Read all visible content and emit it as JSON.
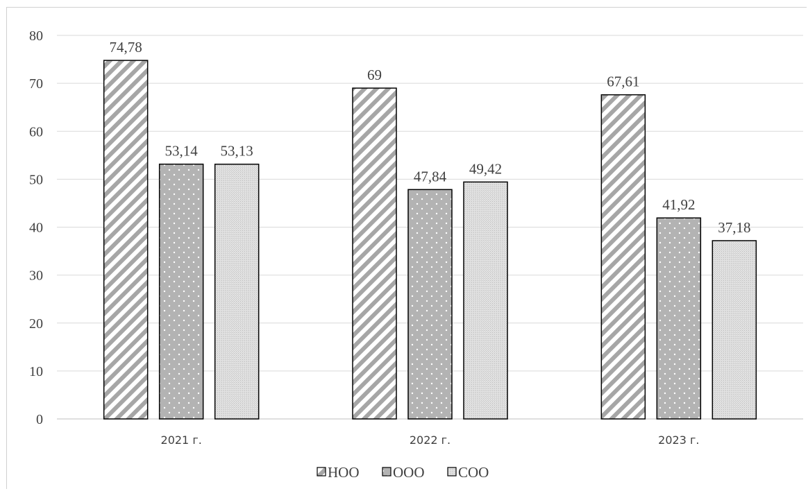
{
  "chart_data": {
    "type": "bar",
    "categories": [
      "2021 г.",
      "2022 г.",
      "2023 г."
    ],
    "series": [
      {
        "name": "НОО",
        "values": [
          74.78,
          69,
          67.61
        ],
        "labels": [
          "74,78",
          "69",
          "67,61"
        ],
        "pattern": "diagonal-stripes"
      },
      {
        "name": "ООО",
        "values": [
          53.14,
          47.84,
          41.92
        ],
        "labels": [
          "53,14",
          "47,84",
          "41,92"
        ],
        "pattern": "dots"
      },
      {
        "name": "СОО",
        "values": [
          53.13,
          49.42,
          37.18
        ],
        "labels": [
          "53,13",
          "49,42",
          "37,18"
        ],
        "pattern": "fine-grid"
      }
    ],
    "yticks": [
      "0",
      "10",
      "20",
      "30",
      "40",
      "50",
      "60",
      "70",
      "80"
    ],
    "ylim": [
      0,
      80
    ],
    "grid": true,
    "legend_position": "bottom",
    "colors": {
      "gridline": "#d9d9d9",
      "bar_outline": "#000000",
      "stripe": "#a6a6a6",
      "dot_fill": "#b3b3b3",
      "grid_fill": "#d9d9d9"
    }
  }
}
